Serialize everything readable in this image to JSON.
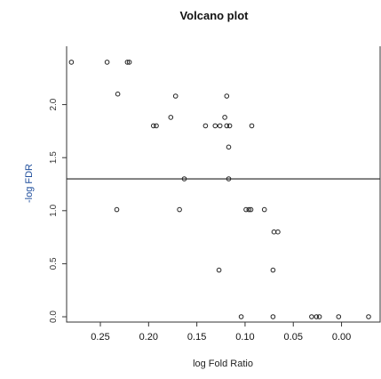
{
  "chart_data": {
    "type": "scatter",
    "title": "Volcano plot",
    "xlabel": "log Fold Ratio",
    "ylabel": "-log FDR",
    "x_reversed": true,
    "xlim": [
      0.285,
      -0.04
    ],
    "ylim": [
      -0.05,
      2.55
    ],
    "x_ticks": [
      0.25,
      0.2,
      0.15,
      0.1,
      0.05,
      0.0
    ],
    "x_tick_labels": [
      "0.25",
      "0.20",
      "0.15",
      "0.10",
      "0.05",
      "0.00"
    ],
    "y_ticks": [
      0.0,
      0.5,
      1.0,
      1.5,
      2.0
    ],
    "y_tick_labels": [
      "0.0",
      "0.5",
      "1.0",
      "1.5",
      "2.0"
    ],
    "threshold_y": 1.3,
    "grid": false,
    "points": [
      {
        "x": 0.28,
        "y": 2.4
      },
      {
        "x": 0.243,
        "y": 2.4
      },
      {
        "x": 0.222,
        "y": 2.4
      },
      {
        "x": 0.22,
        "y": 2.4
      },
      {
        "x": 0.232,
        "y": 2.1
      },
      {
        "x": 0.172,
        "y": 2.08
      },
      {
        "x": 0.119,
        "y": 2.08
      },
      {
        "x": 0.177,
        "y": 1.88
      },
      {
        "x": 0.121,
        "y": 1.88
      },
      {
        "x": 0.195,
        "y": 1.8
      },
      {
        "x": 0.192,
        "y": 1.8
      },
      {
        "x": 0.141,
        "y": 1.8
      },
      {
        "x": 0.131,
        "y": 1.8
      },
      {
        "x": 0.126,
        "y": 1.8
      },
      {
        "x": 0.119,
        "y": 1.8
      },
      {
        "x": 0.116,
        "y": 1.8
      },
      {
        "x": 0.093,
        "y": 1.8
      },
      {
        "x": 0.117,
        "y": 1.6
      },
      {
        "x": 0.163,
        "y": 1.3
      },
      {
        "x": 0.117,
        "y": 1.3
      },
      {
        "x": 0.233,
        "y": 1.01
      },
      {
        "x": 0.168,
        "y": 1.01
      },
      {
        "x": 0.099,
        "y": 1.01
      },
      {
        "x": 0.096,
        "y": 1.01
      },
      {
        "x": 0.094,
        "y": 1.01
      },
      {
        "x": 0.08,
        "y": 1.01
      },
      {
        "x": 0.07,
        "y": 0.8
      },
      {
        "x": 0.066,
        "y": 0.8
      },
      {
        "x": 0.127,
        "y": 0.44
      },
      {
        "x": 0.071,
        "y": 0.44
      },
      {
        "x": 0.104,
        "y": 0.0
      },
      {
        "x": 0.071,
        "y": 0.0
      },
      {
        "x": 0.031,
        "y": 0.0
      },
      {
        "x": 0.026,
        "y": 0.0
      },
      {
        "x": 0.023,
        "y": 0.0
      },
      {
        "x": 0.003,
        "y": 0.0
      },
      {
        "x": -0.028,
        "y": 0.0
      }
    ]
  }
}
